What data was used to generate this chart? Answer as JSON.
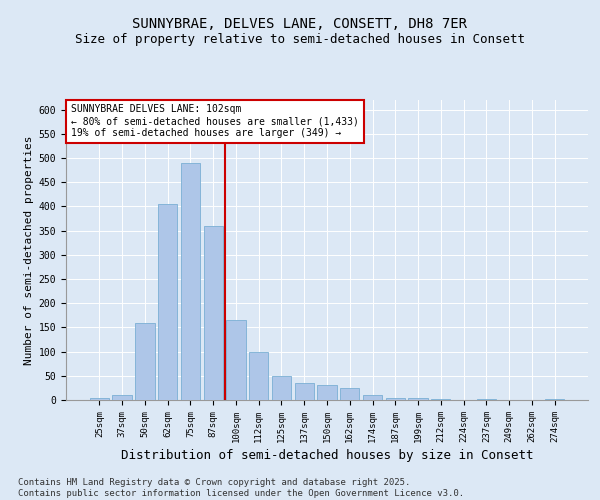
{
  "title1": "SUNNYBRAE, DELVES LANE, CONSETT, DH8 7ER",
  "title2": "Size of property relative to semi-detached houses in Consett",
  "xlabel": "Distribution of semi-detached houses by size in Consett",
  "ylabel": "Number of semi-detached properties",
  "categories": [
    "25sqm",
    "37sqm",
    "50sqm",
    "62sqm",
    "75sqm",
    "87sqm",
    "100sqm",
    "112sqm",
    "125sqm",
    "137sqm",
    "150sqm",
    "162sqm",
    "174sqm",
    "187sqm",
    "199sqm",
    "212sqm",
    "224sqm",
    "237sqm",
    "249sqm",
    "262sqm",
    "274sqm"
  ],
  "values": [
    5,
    10,
    160,
    405,
    490,
    360,
    165,
    100,
    50,
    35,
    30,
    25,
    10,
    5,
    5,
    2,
    0,
    2,
    0,
    0,
    2
  ],
  "bar_color": "#aec6e8",
  "bar_edge_color": "#7aafd4",
  "vline_x": 6,
  "vline_color": "#cc0000",
  "annotation_text": "SUNNYBRAE DELVES LANE: 102sqm\n← 80% of semi-detached houses are smaller (1,433)\n19% of semi-detached houses are larger (349) →",
  "annotation_box_color": "#ffffff",
  "annotation_border_color": "#cc0000",
  "ylim": [
    0,
    620
  ],
  "yticks": [
    0,
    50,
    100,
    150,
    200,
    250,
    300,
    350,
    400,
    450,
    500,
    550,
    600
  ],
  "bg_color": "#dce8f5",
  "plot_bg_color": "#dce8f5",
  "footer": "Contains HM Land Registry data © Crown copyright and database right 2025.\nContains public sector information licensed under the Open Government Licence v3.0.",
  "title_fontsize": 10,
  "subtitle_fontsize": 9,
  "axis_label_fontsize": 8,
  "tick_fontsize": 6.5,
  "footer_fontsize": 6.5
}
